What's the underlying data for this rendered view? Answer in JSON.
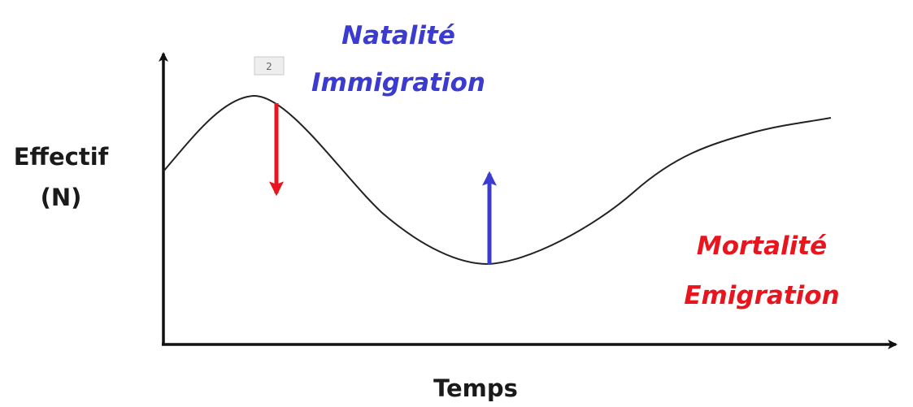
{
  "axes": {
    "y_label_line1": "Effectif",
    "y_label_line2": "(N)",
    "x_label": "Temps"
  },
  "increase": {
    "line1": "Natalité",
    "line2": "Immigration",
    "color": "#3b3bd0",
    "direction": "up"
  },
  "decrease": {
    "line1": "Mortalité",
    "line2": "Emigration",
    "color": "#e8141e",
    "direction": "down"
  },
  "slide_badge": "2",
  "colors": {
    "axis": "#111111",
    "curve": "#222222"
  }
}
